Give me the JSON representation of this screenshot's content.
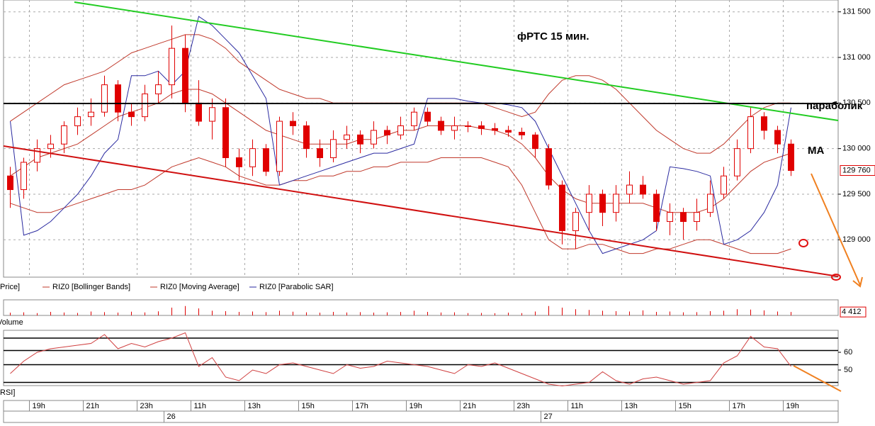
{
  "chart_data": [
    {
      "type": "candlestick",
      "series_name": "Price]",
      "color": "#e00000",
      "annotations": [
        "фРТС   15 мин.",
        "параболик",
        "MA"
      ],
      "xlim": [
        -0.5,
        61.5
      ],
      "xticks": [
        {
          "value": 2,
          "label": "19h"
        },
        {
          "value": 6,
          "label": "21h"
        },
        {
          "value": 10,
          "label": "23h"
        },
        {
          "value": 14,
          "label": "11h"
        },
        {
          "value": 18,
          "label": "13h"
        },
        {
          "value": 22,
          "label": "15h"
        },
        {
          "value": 26,
          "label": "17h"
        },
        {
          "value": 30,
          "label": "19h"
        },
        {
          "value": 34,
          "label": "21h"
        },
        {
          "value": 38,
          "label": "23h"
        },
        {
          "value": 42,
          "label": "11h"
        },
        {
          "value": 46,
          "label": "13h"
        },
        {
          "value": 50,
          "label": "15h"
        },
        {
          "value": 54,
          "label": "17h"
        },
        {
          "value": 58,
          "label": "19h"
        }
      ],
      "day_ticks": [
        {
          "value": 12,
          "label": "26"
        },
        {
          "value": 40,
          "label": "27"
        }
      ],
      "ylim": [
        128590,
        131630
      ],
      "yticks": [
        {
          "value": 129000,
          "label": "129 000"
        },
        {
          "value": 129500,
          "label": "129 500"
        },
        {
          "value": 130000,
          "label": "130 000"
        },
        {
          "value": 130500,
          "label": "130 500"
        },
        {
          "value": 131000,
          "label": "131 000"
        },
        {
          "value": 131500,
          "label": "131 500"
        }
      ],
      "grid": true,
      "last_label": "129 760",
      "open": [
        129700,
        129550,
        129850,
        130000,
        130050,
        130250,
        130350,
        130400,
        130700,
        130400,
        130350,
        130600,
        130700,
        131100,
        130500,
        130300,
        130450,
        129900,
        129800,
        130000,
        129750,
        130300,
        130250,
        130000,
        129900,
        130100,
        130150,
        130050,
        130200,
        130150,
        130250,
        130400,
        130300,
        130200,
        130250,
        130250,
        130220,
        130200,
        130180,
        130150,
        130000,
        129600,
        129100,
        129300,
        129500,
        129300,
        129500,
        129600,
        129500,
        129200,
        129300,
        129200,
        129300,
        129500,
        129700,
        130000,
        130350,
        130200,
        130050
      ],
      "high": [
        129800,
        129900,
        130100,
        130150,
        130300,
        130450,
        130550,
        130800,
        130750,
        130500,
        130700,
        130850,
        131350,
        131250,
        130750,
        130550,
        130550,
        130000,
        130100,
        130050,
        130350,
        130400,
        130300,
        130100,
        130200,
        130250,
        130200,
        130300,
        130250,
        130350,
        130450,
        130450,
        130350,
        130350,
        130300,
        130300,
        130280,
        130250,
        130230,
        130180,
        130050,
        129650,
        129350,
        129600,
        129550,
        129600,
        129750,
        129700,
        129550,
        129400,
        129350,
        129450,
        129650,
        129800,
        130100,
        130450,
        130400,
        130250,
        130100
      ],
      "low": [
        129350,
        129450,
        129750,
        129900,
        129950,
        130150,
        130250,
        130350,
        130300,
        130250,
        130300,
        130500,
        130550,
        130400,
        130250,
        130100,
        129800,
        129650,
        129700,
        129700,
        129700,
        130150,
        129900,
        129800,
        129850,
        130000,
        129950,
        130000,
        130050,
        130100,
        130200,
        130250,
        130150,
        130100,
        130180,
        130150,
        130150,
        130130,
        130100,
        129900,
        129550,
        128950,
        128900,
        129100,
        129150,
        129200,
        129400,
        129450,
        129100,
        129050,
        129000,
        129100,
        129250,
        129450,
        129650,
        129950,
        130100,
        129950,
        129700
      ],
      "close": [
        129550,
        129850,
        130000,
        130050,
        130250,
        130350,
        130400,
        130700,
        130400,
        130350,
        130600,
        130700,
        131100,
        130500,
        130300,
        130450,
        129900,
        129800,
        130000,
        129750,
        130300,
        130250,
        130000,
        129900,
        130100,
        130150,
        130050,
        130200,
        130150,
        130250,
        130400,
        130300,
        130200,
        130250,
        130250,
        130220,
        130200,
        130180,
        130150,
        130000,
        129600,
        129100,
        129300,
        129500,
        129300,
        129500,
        129600,
        129500,
        129200,
        129300,
        129200,
        129300,
        129500,
        129700,
        130000,
        130350,
        130200,
        130050,
        129760
      ],
      "overlays": [
        {
          "name": "RIZ0 [Bollinger Bands]",
          "color": "#c0392b",
          "upper": [
            130300,
            130400,
            130500,
            130600,
            130700,
            130750,
            130800,
            130850,
            130950,
            131050,
            131100,
            131150,
            131200,
            131250,
            131250,
            131200,
            131100,
            130950,
            130850,
            130750,
            130650,
            130600,
            130550,
            130550,
            130500,
            130500,
            130500,
            130500,
            130500,
            130500,
            130500,
            130500,
            130500,
            130500,
            130500,
            130500,
            130450,
            130400,
            130350,
            130400,
            130600,
            130750,
            130800,
            130800,
            130750,
            130650,
            130500,
            130350,
            130200,
            130100,
            130000,
            129950,
            129950,
            130050,
            130200,
            130350,
            130450,
            130500,
            130500
          ],
          "lower": [
            129400,
            129350,
            129300,
            129300,
            129350,
            129400,
            129450,
            129500,
            129550,
            129550,
            129600,
            129700,
            129800,
            129850,
            129900,
            129850,
            129800,
            129700,
            129650,
            129600,
            129600,
            129650,
            129650,
            129700,
            129700,
            129750,
            129750,
            129800,
            129800,
            129850,
            129850,
            129850,
            129900,
            129900,
            129900,
            129900,
            129850,
            129800,
            129600,
            129300,
            129000,
            128900,
            128900,
            128950,
            128950,
            128900,
            128850,
            128850,
            128900,
            128900,
            128950,
            129000,
            129000,
            128950,
            128900,
            128850,
            128850,
            128850,
            128900
          ]
        },
        {
          "name": "RIZ0 [Moving Average]",
          "color": "#c0392b",
          "values": [
            129700,
            129800,
            129900,
            129950,
            130000,
            130050,
            130150,
            130250,
            130350,
            130400,
            130450,
            130500,
            130600,
            130650,
            130650,
            130600,
            130500,
            130400,
            130300,
            130200,
            130150,
            130100,
            130050,
            130050,
            130050,
            130050,
            130100,
            130100,
            130150,
            130200,
            130200,
            130250,
            130250,
            130250,
            130250,
            130220,
            130200,
            130150,
            130050,
            129900,
            129700,
            129550,
            129450,
            129400,
            129400,
            129400,
            129400,
            129400,
            129350,
            129300,
            129300,
            129300,
            129350,
            129450,
            129600,
            129750,
            129850,
            129900,
            129950
          ]
        },
        {
          "name": "RIZ0 [Parabolic SAR]",
          "color": "#2a2aa0",
          "values": [
            130300,
            129050,
            129100,
            129200,
            129350,
            129500,
            129700,
            129950,
            130100,
            130800,
            130800,
            130850,
            130700,
            130850,
            131450,
            131350,
            131200,
            131050,
            130800,
            130550,
            129600,
            129650,
            129700,
            129750,
            129800,
            129850,
            129900,
            129950,
            129950,
            130000,
            130050,
            130550,
            130550,
            130550,
            130520,
            130500,
            130500,
            130480,
            130450,
            130300,
            130000,
            129700,
            129400,
            129100,
            128850,
            128900,
            128950,
            129000,
            129100,
            129800,
            129780,
            129750,
            129700,
            128950,
            129000,
            129100,
            129300,
            129600,
            130450
          ]
        }
      ]
    },
    {
      "type": "bar",
      "name": "Volume",
      "color": "#e00000",
      "ylim": [
        0,
        20000
      ],
      "yticks": [
        {
          "value": 4412,
          "label": "4 412"
        }
      ],
      "values": [
        3500,
        4000,
        3000,
        4500,
        3800,
        3200,
        5000,
        4200,
        3600,
        4800,
        3900,
        5200,
        10000,
        12000,
        9000,
        6000,
        5500,
        4500,
        5000,
        4200,
        6000,
        4800,
        4000,
        3500,
        4500,
        3800,
        4200,
        3600,
        4000,
        4400,
        6000,
        4500,
        3800,
        4000,
        3000,
        3200,
        2800,
        3500,
        3000,
        5000,
        12000,
        10000,
        8000,
        7000,
        6000,
        5500,
        5000,
        6500,
        4500,
        5000,
        4000,
        4200,
        5500,
        6000,
        8000,
        7500,
        6500,
        5000,
        4412
      ]
    },
    {
      "type": "line",
      "name": "RSI]",
      "color": "#d04040",
      "ylim": [
        40,
        72
      ],
      "yticks": [
        50,
        60
      ],
      "levels": [
        43,
        53,
        61,
        68
      ],
      "values": [
        48,
        55,
        60,
        62,
        63,
        64,
        65,
        70,
        62,
        65,
        63,
        66,
        68,
        71,
        52,
        57,
        46,
        44,
        50,
        48,
        53,
        54,
        52,
        50,
        48,
        53,
        51,
        52,
        55,
        54,
        53,
        52,
        50,
        48,
        53,
        52,
        54,
        51,
        48,
        45,
        42,
        41,
        42,
        43,
        49,
        44,
        42,
        45,
        46,
        44,
        42,
        43,
        44,
        54,
        58,
        69,
        63,
        62,
        52
      ]
    }
  ]
}
